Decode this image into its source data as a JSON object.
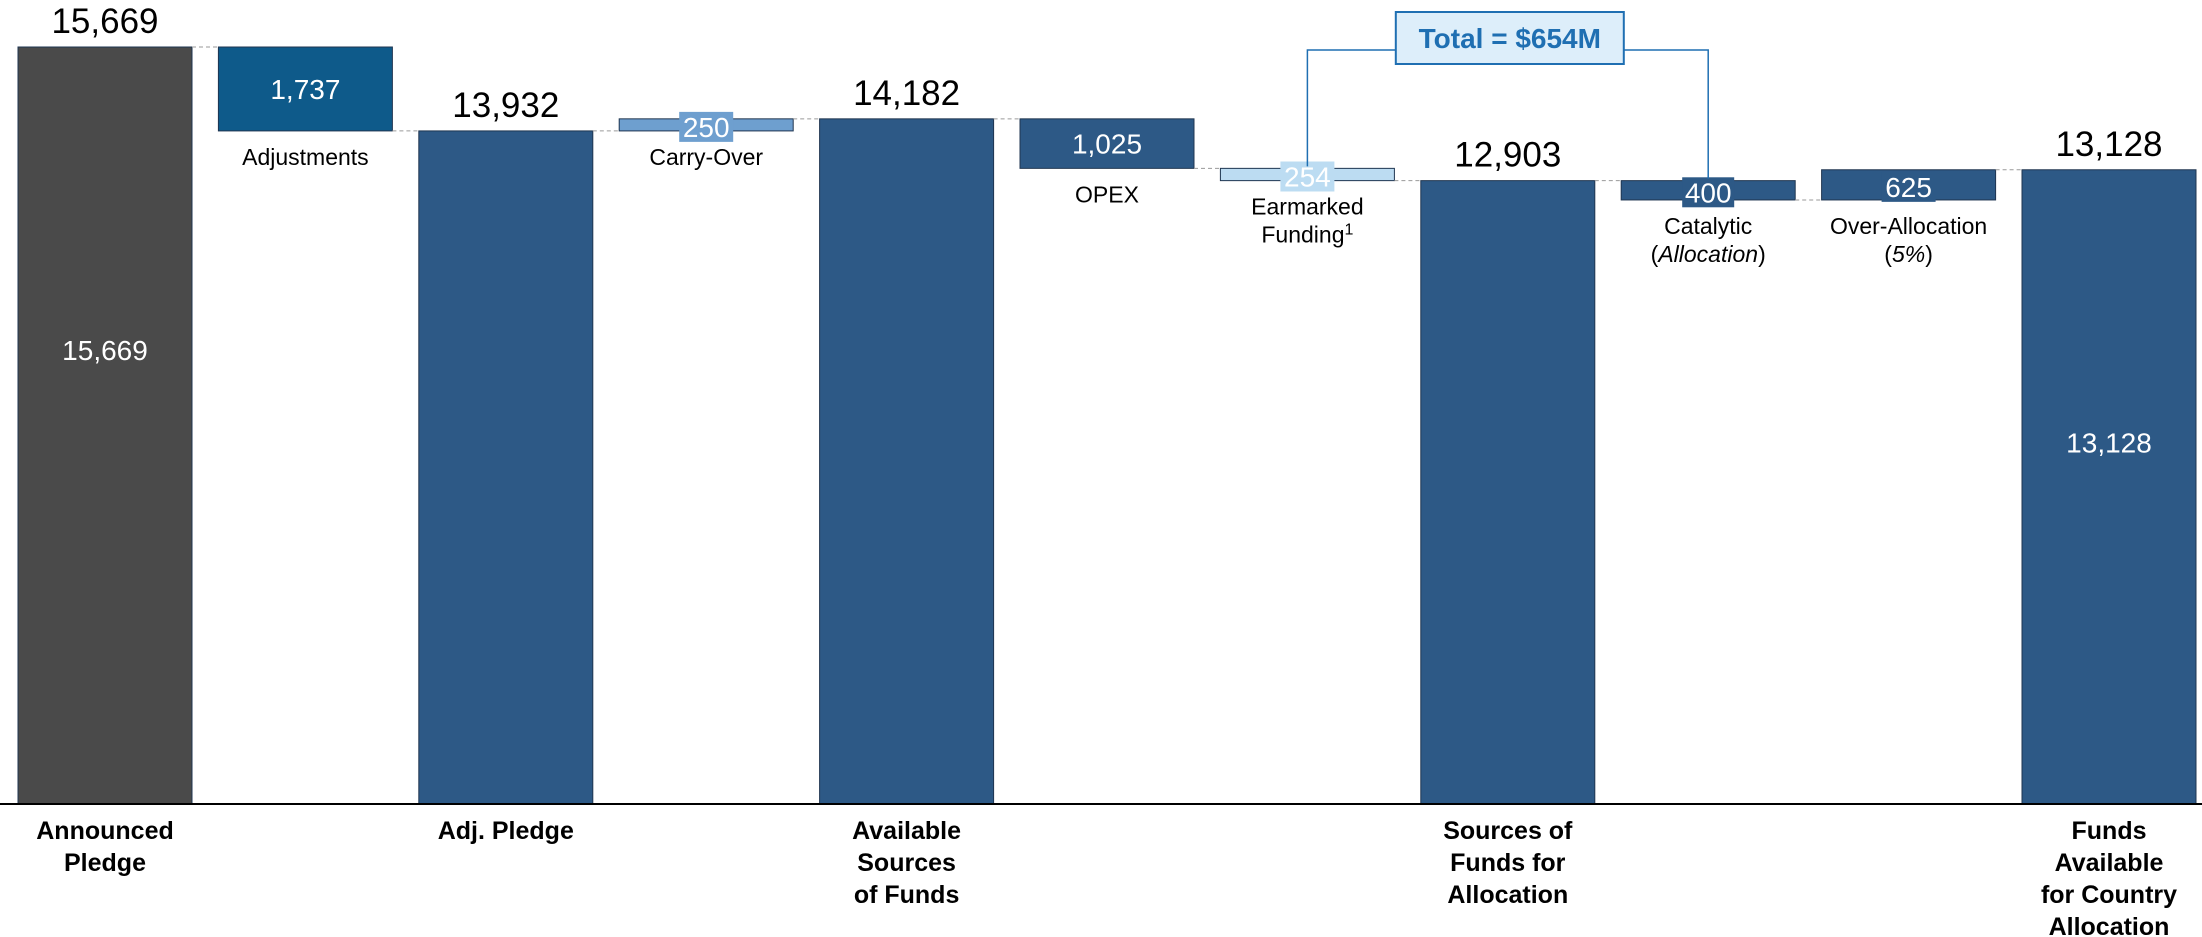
{
  "chart_data": {
    "type": "bar",
    "subtype": "waterfall",
    "units": "",
    "ylim": [
      0,
      16500
    ],
    "grid": false,
    "legend": "none",
    "colors": {
      "total_dark": "#4a4a4a",
      "total_blue": "#2d5986",
      "adjustment": "#0e5a8a",
      "carry_over": "#6e9fcf",
      "opex": "#2d5986",
      "earmarked": "#bcdcf2",
      "catalytic": "#2d5986",
      "over_allocation": "#2d5986",
      "callout_border": "#1f6fb2",
      "callout_fill": "#ddeefa"
    },
    "steps": [
      {
        "key": "announced",
        "kind": "total",
        "value": 15669,
        "top_label": "15,669",
        "inside_label": "15,669",
        "category": [
          "Announced",
          "Pledge"
        ],
        "color": "total_dark"
      },
      {
        "key": "adjustments",
        "kind": "delta",
        "value": -1737,
        "inside_label": "1,737",
        "caption": [
          "Adjustments"
        ],
        "color": "adjustment"
      },
      {
        "key": "adj_pledge",
        "kind": "total",
        "value": 13932,
        "top_label": "13,932",
        "category": [
          "Adj. Pledge"
        ],
        "color": "total_blue"
      },
      {
        "key": "carry_over",
        "kind": "delta",
        "value": 250,
        "inside_label": "250",
        "caption": [
          "Carry-Over"
        ],
        "color": "carry_over"
      },
      {
        "key": "available",
        "kind": "total",
        "value": 14182,
        "top_label": "14,182",
        "category": [
          "Available",
          "Sources",
          "of Funds"
        ],
        "color": "total_blue"
      },
      {
        "key": "opex",
        "kind": "delta",
        "value": -1025,
        "inside_label": "1,025",
        "caption": [
          "OPEX"
        ],
        "color": "opex"
      },
      {
        "key": "earmarked",
        "kind": "delta",
        "value": -254,
        "inside_label": "254",
        "caption": [
          "Earmarked",
          "Funding¹"
        ],
        "color": "earmarked"
      },
      {
        "key": "sources_alloc",
        "kind": "total",
        "value": 12903,
        "top_label": "12,903",
        "category": [
          "Sources of",
          "Funds for",
          "Allocation"
        ],
        "color": "total_blue"
      },
      {
        "key": "catalytic",
        "kind": "delta",
        "value": -400,
        "inside_label": "400",
        "caption": [
          "Catalytic",
          "(Allocation)"
        ],
        "color": "catalytic"
      },
      {
        "key": "over_alloc",
        "kind": "delta",
        "value": 625,
        "inside_label": "625",
        "caption": [
          "Over-Allocation",
          "(5%)"
        ],
        "color": "over_allocation"
      },
      {
        "key": "funds_country",
        "kind": "total",
        "value": 13128,
        "top_label": "13,128",
        "inside_label": "13,128",
        "category": [
          "Funds",
          "Available",
          "for Country",
          "Allocation"
        ],
        "color": "total_blue"
      }
    ],
    "callout": {
      "text": "Total = $654M",
      "spans": [
        "earmarked",
        "catalytic"
      ]
    }
  }
}
